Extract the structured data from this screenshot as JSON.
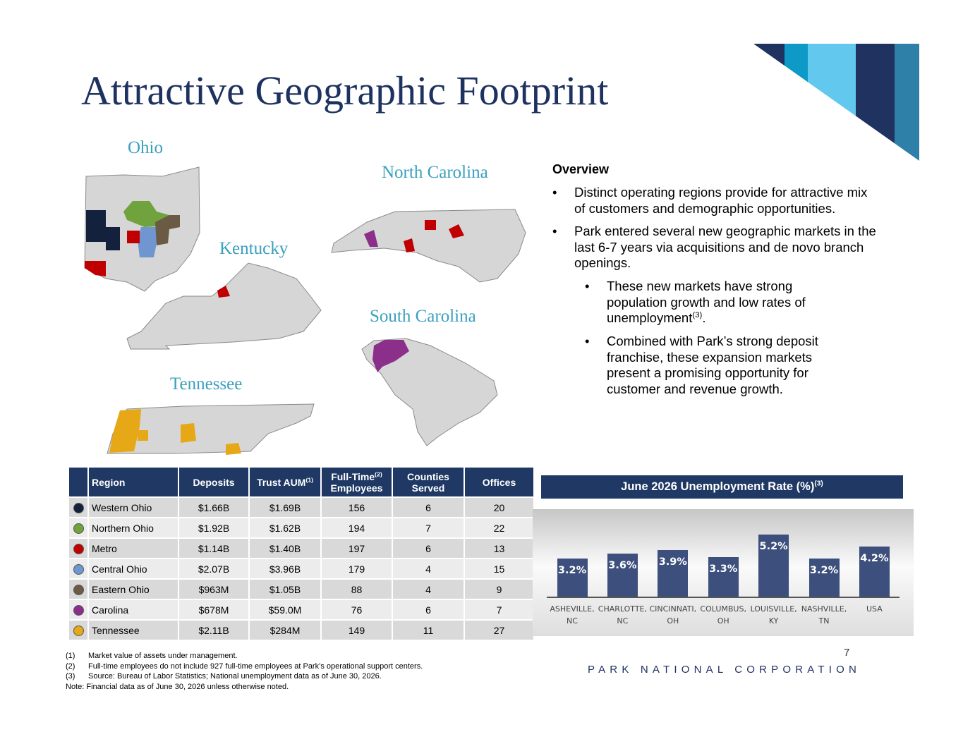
{
  "title": "Attractive Geographic Footprint",
  "map_labels": [
    "Ohio",
    "North Carolina",
    "Kentucky",
    "South Carolina",
    "Tennessee"
  ],
  "overview": {
    "heading": "Overview",
    "bullets": [
      {
        "text": "Distinct operating regions provide for attractive mix of customers and demographic opportunities."
      },
      {
        "text": "Park entered several new geographic markets in the last 6-7 years via acquisitions and de novo branch openings.",
        "sub": [
          {
            "text": "These new markets have strong population growth and low rates of unemployment",
            "sup": "(3)",
            "after": "."
          },
          {
            "text": "Combined with Park’s strong deposit franchise, these expansion markets present a promising opportunity for customer and revenue growth."
          }
        ]
      }
    ]
  },
  "table": {
    "header": [
      {
        "text": "Region"
      },
      {
        "text": "Deposits"
      },
      {
        "text": "Trust AUM",
        "sup": "(1)"
      },
      {
        "text": "Full-Time",
        "sup": "(2)",
        "after": "Employees"
      },
      {
        "text": "Counties Served"
      },
      {
        "text": "Offices"
      }
    ],
    "rows": [
      {
        "color": "#14213d",
        "cells": [
          "Western Ohio",
          "$1.66B",
          "$1.69B",
          156,
          6,
          20
        ]
      },
      {
        "color": "#70a23e",
        "cells": [
          "Northern Ohio",
          "$1.92B",
          "$1.62B",
          194,
          7,
          22
        ]
      },
      {
        "color": "#c00000",
        "cells": [
          "Metro",
          "$1.14B",
          "$1.40B",
          197,
          6,
          13
        ]
      },
      {
        "color": "#7096d1",
        "cells": [
          "Central Ohio",
          "$2.07B",
          "$3.96B",
          179,
          4,
          15
        ]
      },
      {
        "color": "#6b5a44",
        "cells": [
          "Eastern Ohio",
          "$963M",
          "$1.05B",
          88,
          4,
          9
        ]
      },
      {
        "color": "#8b2f8a",
        "cells": [
          "Carolina",
          "$678M",
          "$59.0M",
          76,
          6,
          7
        ]
      },
      {
        "color": "#e6a817",
        "cells": [
          "Tennessee",
          "$2.11B",
          "$284M",
          149,
          11,
          27
        ]
      }
    ]
  },
  "chart_data": {
    "type": "bar",
    "title": "June 2026 Unemployment Rate (%)",
    "title_sup": "(3)",
    "categories": [
      "ASHEVILLE, NC",
      "CHARLOTTE, NC",
      "CINCINNATI, OH",
      "COLUMBUS, OH",
      "LOUISVILLE, KY",
      "NASHVILLE, TN",
      "USA"
    ],
    "values": [
      3.2,
      3.6,
      3.9,
      3.3,
      5.2,
      3.2,
      4.2
    ],
    "value_labels": [
      "3.2%",
      "3.6%",
      "3.9%",
      "3.3%",
      "5.2%",
      "3.2%",
      "4.2%"
    ],
    "color": "#3d4f7c"
  },
  "footnotes": [
    {
      "marker": "(1)",
      "text": "Market value of assets under management."
    },
    {
      "marker": "(2)",
      "text": "Full-time employees do not include 927 full-time employees at Park’s operational support centers."
    },
    {
      "marker": "(3)",
      "text": "Source: Bureau of Labor Statistics; National unemployment data as of June 30, 2026."
    }
  ],
  "note": "Note: Financial data as of June 30, 2026 unless otherwise noted.",
  "footer": {
    "page": "7",
    "company": "PARK NATIONAL CORPORATION"
  }
}
